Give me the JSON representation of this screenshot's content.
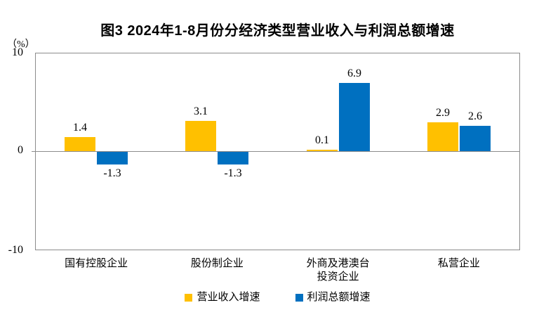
{
  "chart": {
    "title": "图3 2024年1-8月份分经济类型营业收入与利润总额增速",
    "unit_label": "（%）",
    "yticks": {
      "top": "10",
      "zero": "0",
      "bottom": "-10"
    }
  },
  "chart_data": {
    "type": "bar",
    "title": "图3 2024年1-8月份分经济类型营业收入与利润总额增速",
    "unit": "%",
    "categories": [
      "国有控股企业",
      "股份制企业",
      "外商及港澳台\n投资企业",
      "私营企业"
    ],
    "series": [
      {
        "key": "operating-revenue-growth",
        "name": "营业收入增速",
        "color": "#FFC000",
        "values": [
          1.4,
          3.1,
          0.1,
          2.9
        ]
      },
      {
        "key": "total-profit-growth",
        "name": "利润总额增速",
        "color": "#0070C0",
        "values": [
          -1.3,
          -1.3,
          6.9,
          2.6
        ]
      }
    ],
    "ylim": [
      -10,
      10
    ],
    "ytick_values": [
      10,
      0,
      -10
    ],
    "grid": "zero-line-only",
    "legend_position": "bottom",
    "data_labels": true
  },
  "colors": {
    "revenue_bar": "#FFC000",
    "profit_bar": "#0070C0",
    "axis_line": "#8C8C8C",
    "text": "#000000"
  }
}
